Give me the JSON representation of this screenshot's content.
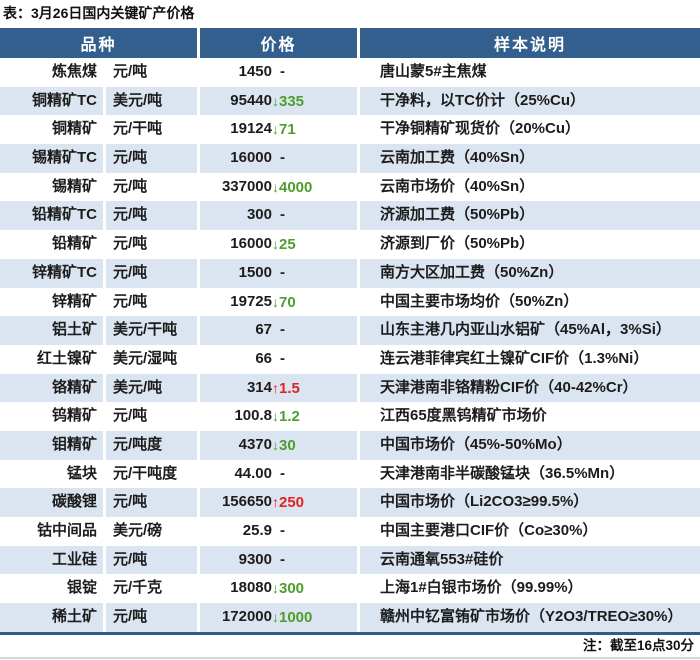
{
  "title": "表：3月26日国内关键矿产价格",
  "note": "注：截至16点30分",
  "icons": {
    "up": "↑",
    "down": "↓"
  },
  "colors": {
    "header_bg": "#335f8e",
    "row_alt_bg": "#dbe5f1",
    "up_red": "#e22222",
    "down_green": "#4f9d2d",
    "bottom_rule_blue": "#2e5d8d"
  },
  "table": {
    "headers": {
      "variety": "品种",
      "price": "价格",
      "sample": "样本说明"
    },
    "rows": [
      {
        "name": "炼焦煤",
        "unit": "元/吨",
        "value": "1450",
        "dir": "flat",
        "change": "-",
        "desc": "唐山蒙5#主焦煤"
      },
      {
        "name": "铜精矿TC",
        "unit": "美元/吨",
        "value": "95440",
        "dir": "down",
        "change": "335",
        "desc": "干净料，以TC价计（25%Cu）"
      },
      {
        "name": "铜精矿",
        "unit": "元/干吨",
        "value": "19124",
        "dir": "down",
        "change": "71",
        "desc": "干净铜精矿现货价（20%Cu）"
      },
      {
        "name": "锡精矿TC",
        "unit": "元/吨",
        "value": "16000",
        "dir": "flat",
        "change": "-",
        "desc": "云南加工费（40%Sn）"
      },
      {
        "name": "锡精矿",
        "unit": "元/吨",
        "value": "337000",
        "dir": "down",
        "change": "4000",
        "desc": "云南市场价（40%Sn）"
      },
      {
        "name": "铅精矿TC",
        "unit": "元/吨",
        "value": "300",
        "dir": "flat",
        "change": "-",
        "desc": "济源加工费（50%Pb）"
      },
      {
        "name": "铅精矿",
        "unit": "元/吨",
        "value": "16000",
        "dir": "down",
        "change": "25",
        "desc": "济源到厂价（50%Pb）"
      },
      {
        "name": "锌精矿TC",
        "unit": "元/吨",
        "value": "1500",
        "dir": "flat",
        "change": "-",
        "desc": "南方大区加工费（50%Zn）"
      },
      {
        "name": "锌精矿",
        "unit": "元/吨",
        "value": "19725",
        "dir": "down",
        "change": "70",
        "desc": "中国主要市场均价（50%Zn）"
      },
      {
        "name": "铝土矿",
        "unit": "美元/干吨",
        "value": "67",
        "dir": "flat",
        "change": "-",
        "desc": "山东主港几内亚山水铝矿（45%Al，3%Si）"
      },
      {
        "name": "红土镍矿",
        "unit": "美元/湿吨",
        "value": "66",
        "dir": "flat",
        "change": "-",
        "desc": "连云港菲律宾红土镍矿CIF价（1.3%Ni）"
      },
      {
        "name": "铬精矿",
        "unit": "美元/吨",
        "value": "314",
        "dir": "up",
        "change": "1.5",
        "desc": "天津港南非铬精粉CIF价（40-42%Cr）"
      },
      {
        "name": "钨精矿",
        "unit": "元/吨",
        "value": "100.8",
        "dir": "down",
        "change": "1.2",
        "desc": "江西65度黑钨精矿市场价"
      },
      {
        "name": "钼精矿",
        "unit": "元/吨度",
        "value": "4370",
        "dir": "down",
        "change": "30",
        "desc": "中国市场价（45%-50%Mo）"
      },
      {
        "name": "锰块",
        "unit": "元/干吨度",
        "value": "44.00",
        "dir": "flat",
        "change": "-",
        "desc": "天津港南非半碳酸锰块（36.5%Mn）"
      },
      {
        "name": "碳酸锂",
        "unit": "元/吨",
        "value": "156650",
        "dir": "up",
        "change": "250",
        "desc": "中国市场价（Li2CO3≥99.5%）"
      },
      {
        "name": "钴中间品",
        "unit": "美元/磅",
        "value": "25.9",
        "dir": "flat",
        "change": "-",
        "desc": "中国主要港口CIF价（Co≥30%）"
      },
      {
        "name": "工业硅",
        "unit": "元/吨",
        "value": "9300",
        "dir": "flat",
        "change": "-",
        "desc": "云南通氧553#硅价"
      },
      {
        "name": "银锭",
        "unit": "元/千克",
        "value": "18080",
        "dir": "down",
        "change": "300",
        "desc": "上海1#白银市场价（99.99%）"
      },
      {
        "name": "稀土矿",
        "unit": "元/吨",
        "value": "172000",
        "dir": "down",
        "change": "1000",
        "desc": "赣州中钇富铕矿市场价（Y2O3/TREO≥30%）"
      }
    ]
  }
}
